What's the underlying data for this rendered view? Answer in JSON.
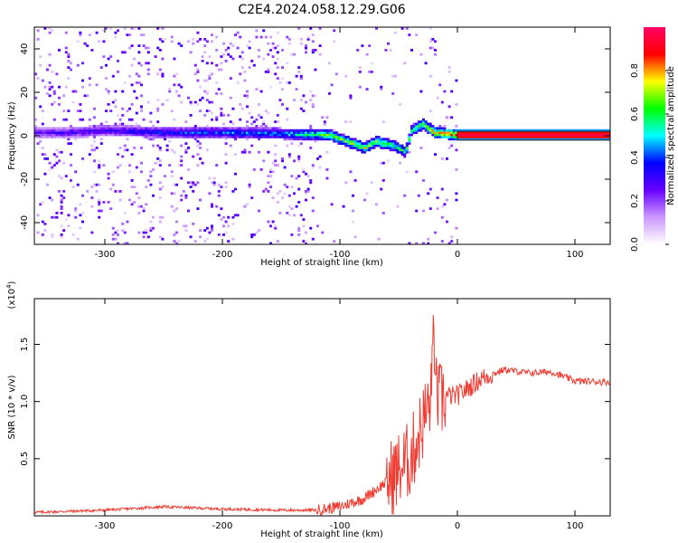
{
  "title": "C2E4.2024.058.12.29.G06",
  "chart_data": [
    {
      "type": "heatmap",
      "xlabel": "Height of straight line (km)",
      "ylabel": "Frequency (Hz)",
      "xlim": [
        -360,
        130
      ],
      "ylim": [
        -50,
        50
      ],
      "x_ticks": [
        -300,
        -200,
        -100,
        0,
        100
      ],
      "y_ticks": [
        -40,
        -20,
        0,
        20,
        40
      ],
      "colorbar": {
        "label": "Normalized spectral amplitude",
        "range": [
          0,
          1
        ],
        "ticks": [
          "0.0",
          "0.2",
          "0.4",
          "0.6",
          "0.8"
        ],
        "colormap": [
          "#ffffff",
          "#cc99ff",
          "#6600ff",
          "#0000ff",
          "#00ffff",
          "#00ff00",
          "#ffff00",
          "#ff0000",
          "#ff0066"
        ]
      },
      "ridge": [
        {
          "x": -330,
          "y": 1
        },
        {
          "x": -300,
          "y": 2
        },
        {
          "x": -270,
          "y": 1.5
        },
        {
          "x": -250,
          "y": 1
        },
        {
          "x": -200,
          "y": 1
        },
        {
          "x": -150,
          "y": 0.5
        },
        {
          "x": -110,
          "y": 0
        },
        {
          "x": -95,
          "y": -3
        },
        {
          "x": -80,
          "y": -6
        },
        {
          "x": -70,
          "y": -3
        },
        {
          "x": -55,
          "y": -5
        },
        {
          "x": -45,
          "y": -8
        },
        {
          "x": -40,
          "y": 2
        },
        {
          "x": -30,
          "y": 5
        },
        {
          "x": -20,
          "y": 1
        },
        {
          "x": -10,
          "y": 0.5
        },
        {
          "x": 0,
          "y": 0
        },
        {
          "x": 130,
          "y": 0
        }
      ],
      "ridge_amplitude": [
        {
          "x": -330,
          "a": 0.3
        },
        {
          "x": -250,
          "a": 0.4
        },
        {
          "x": -150,
          "a": 0.5
        },
        {
          "x": -110,
          "a": 0.7
        },
        {
          "x": -80,
          "a": 0.75
        },
        {
          "x": -40,
          "a": 0.6
        },
        {
          "x": -20,
          "a": 0.8
        },
        {
          "x": 0,
          "a": 0.95
        },
        {
          "x": 130,
          "a": 0.97
        }
      ]
    },
    {
      "type": "line",
      "xlabel": "Height of straight line (km)",
      "ylabel": "SNR (10 * v/v)",
      "ylabel_exponent": "(x10",
      "ylabel_exponent_sup": "4",
      "ylabel_exponent_close": ")",
      "xlim": [
        -360,
        130
      ],
      "ylim": [
        0,
        19000
      ],
      "x_ticks": [
        -300,
        -200,
        -100,
        0,
        100
      ],
      "y_ticks": [
        0.5,
        1.0,
        1.5
      ],
      "y_ticklabels": [
        "0.5",
        "1.0",
        "1.5"
      ],
      "y_scale": 10000,
      "color": "#f03c32",
      "series": [
        {
          "x": [
            -360,
            -300,
            -250,
            -200,
            -150,
            -120,
            -100,
            -80,
            -60,
            -40,
            -30,
            -20,
            -15,
            -10,
            0,
            20,
            40,
            60,
            80,
            100,
            130
          ],
          "y": [
            300,
            500,
            800,
            600,
            500,
            500,
            800,
            1500,
            3000,
            5000,
            8000,
            11000,
            10000,
            10500,
            10500,
            12000,
            12800,
            12500,
            12600,
            11800,
            11700
          ]
        }
      ]
    }
  ]
}
